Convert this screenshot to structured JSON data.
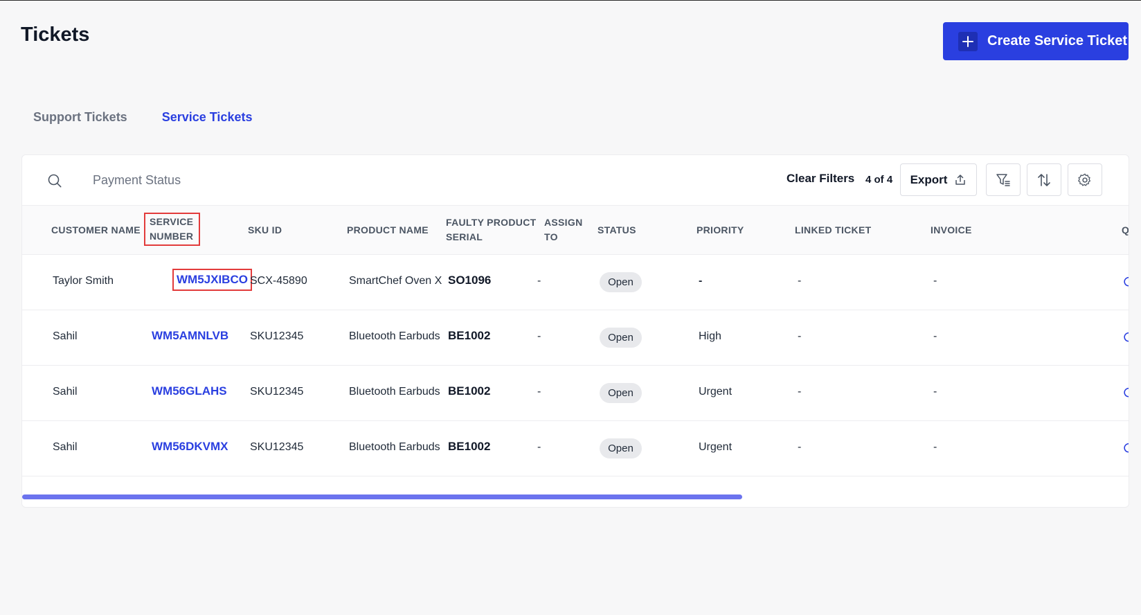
{
  "header": {
    "title": "Tickets",
    "create_button": "Create Service Ticket"
  },
  "tabs": [
    {
      "label": "Support Tickets",
      "active": false
    },
    {
      "label": "Service Tickets",
      "active": true
    }
  ],
  "toolbar": {
    "search_placeholder": "Payment Status",
    "clear_filters": "Clear Filters",
    "count": "4 of 4",
    "export_label": "Export"
  },
  "table": {
    "columns": {
      "customer_name": "CUSTOMER NAME",
      "service_number_1": "SERVICE",
      "service_number_2": "NUMBER",
      "sku_id": "SKU ID",
      "product_name": "PRODUCT NAME",
      "faulty_1": "FAULTY PRODUCT",
      "faulty_2": "SERIAL",
      "assign_1": "ASSIGN",
      "assign_2": "TO",
      "status": "STATUS",
      "priority": "PRIORITY",
      "linked_ticket": "LINKED TICKET",
      "invoice": "INVOICE",
      "overflow": "Q"
    },
    "rows": [
      {
        "customer": "Taylor Smith",
        "service_number": "WM5JXIBCO",
        "sku": "SCX-45890",
        "product": "SmartChef Oven X",
        "serial": "SO1096",
        "assign": "-",
        "status": "Open",
        "priority": "-",
        "linked": "-",
        "invoice": "-"
      },
      {
        "customer": "Sahil",
        "service_number": "WM5AMNLVB",
        "sku": "SKU12345",
        "product": "Bluetooth Earbuds",
        "serial": "BE1002",
        "assign": "-",
        "status": "Open",
        "priority": "High",
        "linked": "-",
        "invoice": "-"
      },
      {
        "customer": "Sahil",
        "service_number": "WM56GLAHS",
        "sku": "SKU12345",
        "product": "Bluetooth Earbuds",
        "serial": "BE1002",
        "assign": "-",
        "status": "Open",
        "priority": "Urgent",
        "linked": "-",
        "invoice": "-"
      },
      {
        "customer": "Sahil",
        "service_number": "WM56DKVMX",
        "sku": "SKU12345",
        "product": "Bluetooth Earbuds",
        "serial": "BE1002",
        "assign": "-",
        "status": "Open",
        "priority": "Urgent",
        "linked": "-",
        "invoice": "-"
      }
    ]
  },
  "colors": {
    "accent": "#2a3fe0",
    "highlight_outline": "#e23b3b",
    "scrollbar": "#6b73ee"
  }
}
